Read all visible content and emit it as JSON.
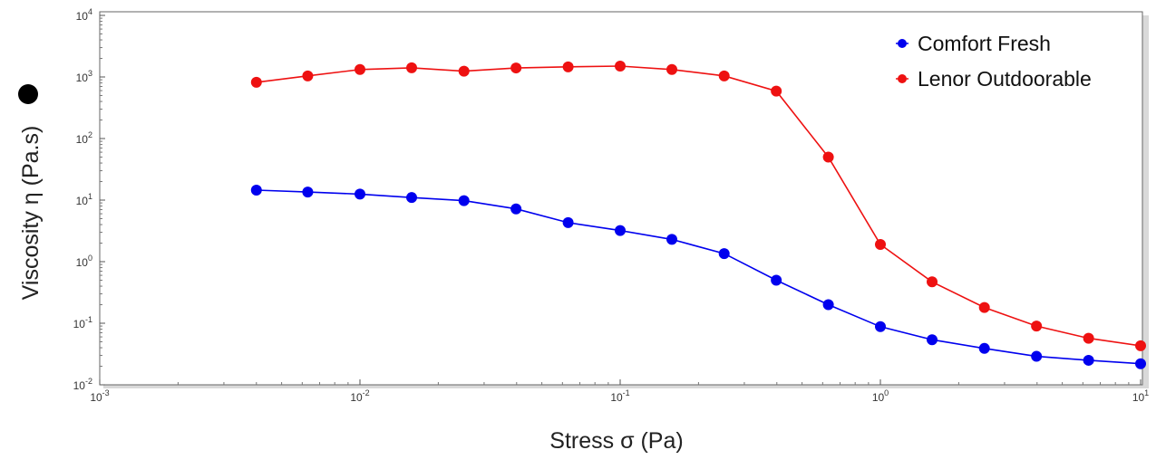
{
  "chart_data": {
    "type": "line",
    "title": "",
    "xlabel": "Stress  σ  (Pa)",
    "ylabel": "Viscosity  η  (Pa.s)",
    "xscale": "log",
    "yscale": "log",
    "xlim": [
      0.001,
      10
    ],
    "ylim": [
      0.01,
      10000
    ],
    "x_ticks": [
      {
        "base": "10",
        "exp": "-3"
      },
      {
        "base": "10",
        "exp": "-2"
      },
      {
        "base": "10",
        "exp": "-1"
      },
      {
        "base": "10",
        "exp": "0"
      },
      {
        "base": "10",
        "exp": "1"
      }
    ],
    "y_ticks": [
      {
        "base": "10",
        "exp": "-2"
      },
      {
        "base": "10",
        "exp": "-1"
      },
      {
        "base": "10",
        "exp": "0"
      },
      {
        "base": "10",
        "exp": "1"
      },
      {
        "base": "10",
        "exp": "2"
      },
      {
        "base": "10",
        "exp": "3"
      },
      {
        "base": "10",
        "exp": "4"
      }
    ],
    "grid": false,
    "legend_position": "top-right",
    "series": [
      {
        "name": "Comfort Fresh",
        "color": "#0000ee",
        "x": [
          0.004,
          0.0063,
          0.01,
          0.0158,
          0.0251,
          0.0398,
          0.0631,
          0.1,
          0.158,
          0.251,
          0.398,
          0.631,
          1.0,
          1.58,
          2.51,
          3.98,
          6.31,
          10.0
        ],
        "y": [
          14.5,
          13.5,
          12.5,
          11.0,
          9.8,
          7.2,
          4.3,
          3.2,
          2.3,
          1.35,
          0.5,
          0.2,
          0.088,
          0.054,
          0.039,
          0.029,
          0.025,
          0.022
        ]
      },
      {
        "name": "Lenor Outdoorable",
        "color": "#ee1111",
        "x": [
          0.004,
          0.0063,
          0.01,
          0.0158,
          0.0251,
          0.0398,
          0.0631,
          0.1,
          0.158,
          0.251,
          0.398,
          0.631,
          1.0,
          1.58,
          2.51,
          3.98,
          6.31,
          10.0
        ],
        "y": [
          820,
          1040,
          1320,
          1410,
          1240,
          1400,
          1460,
          1500,
          1320,
          1040,
          590,
          50,
          1.9,
          0.47,
          0.18,
          0.09,
          0.057,
          0.043
        ]
      }
    ]
  }
}
